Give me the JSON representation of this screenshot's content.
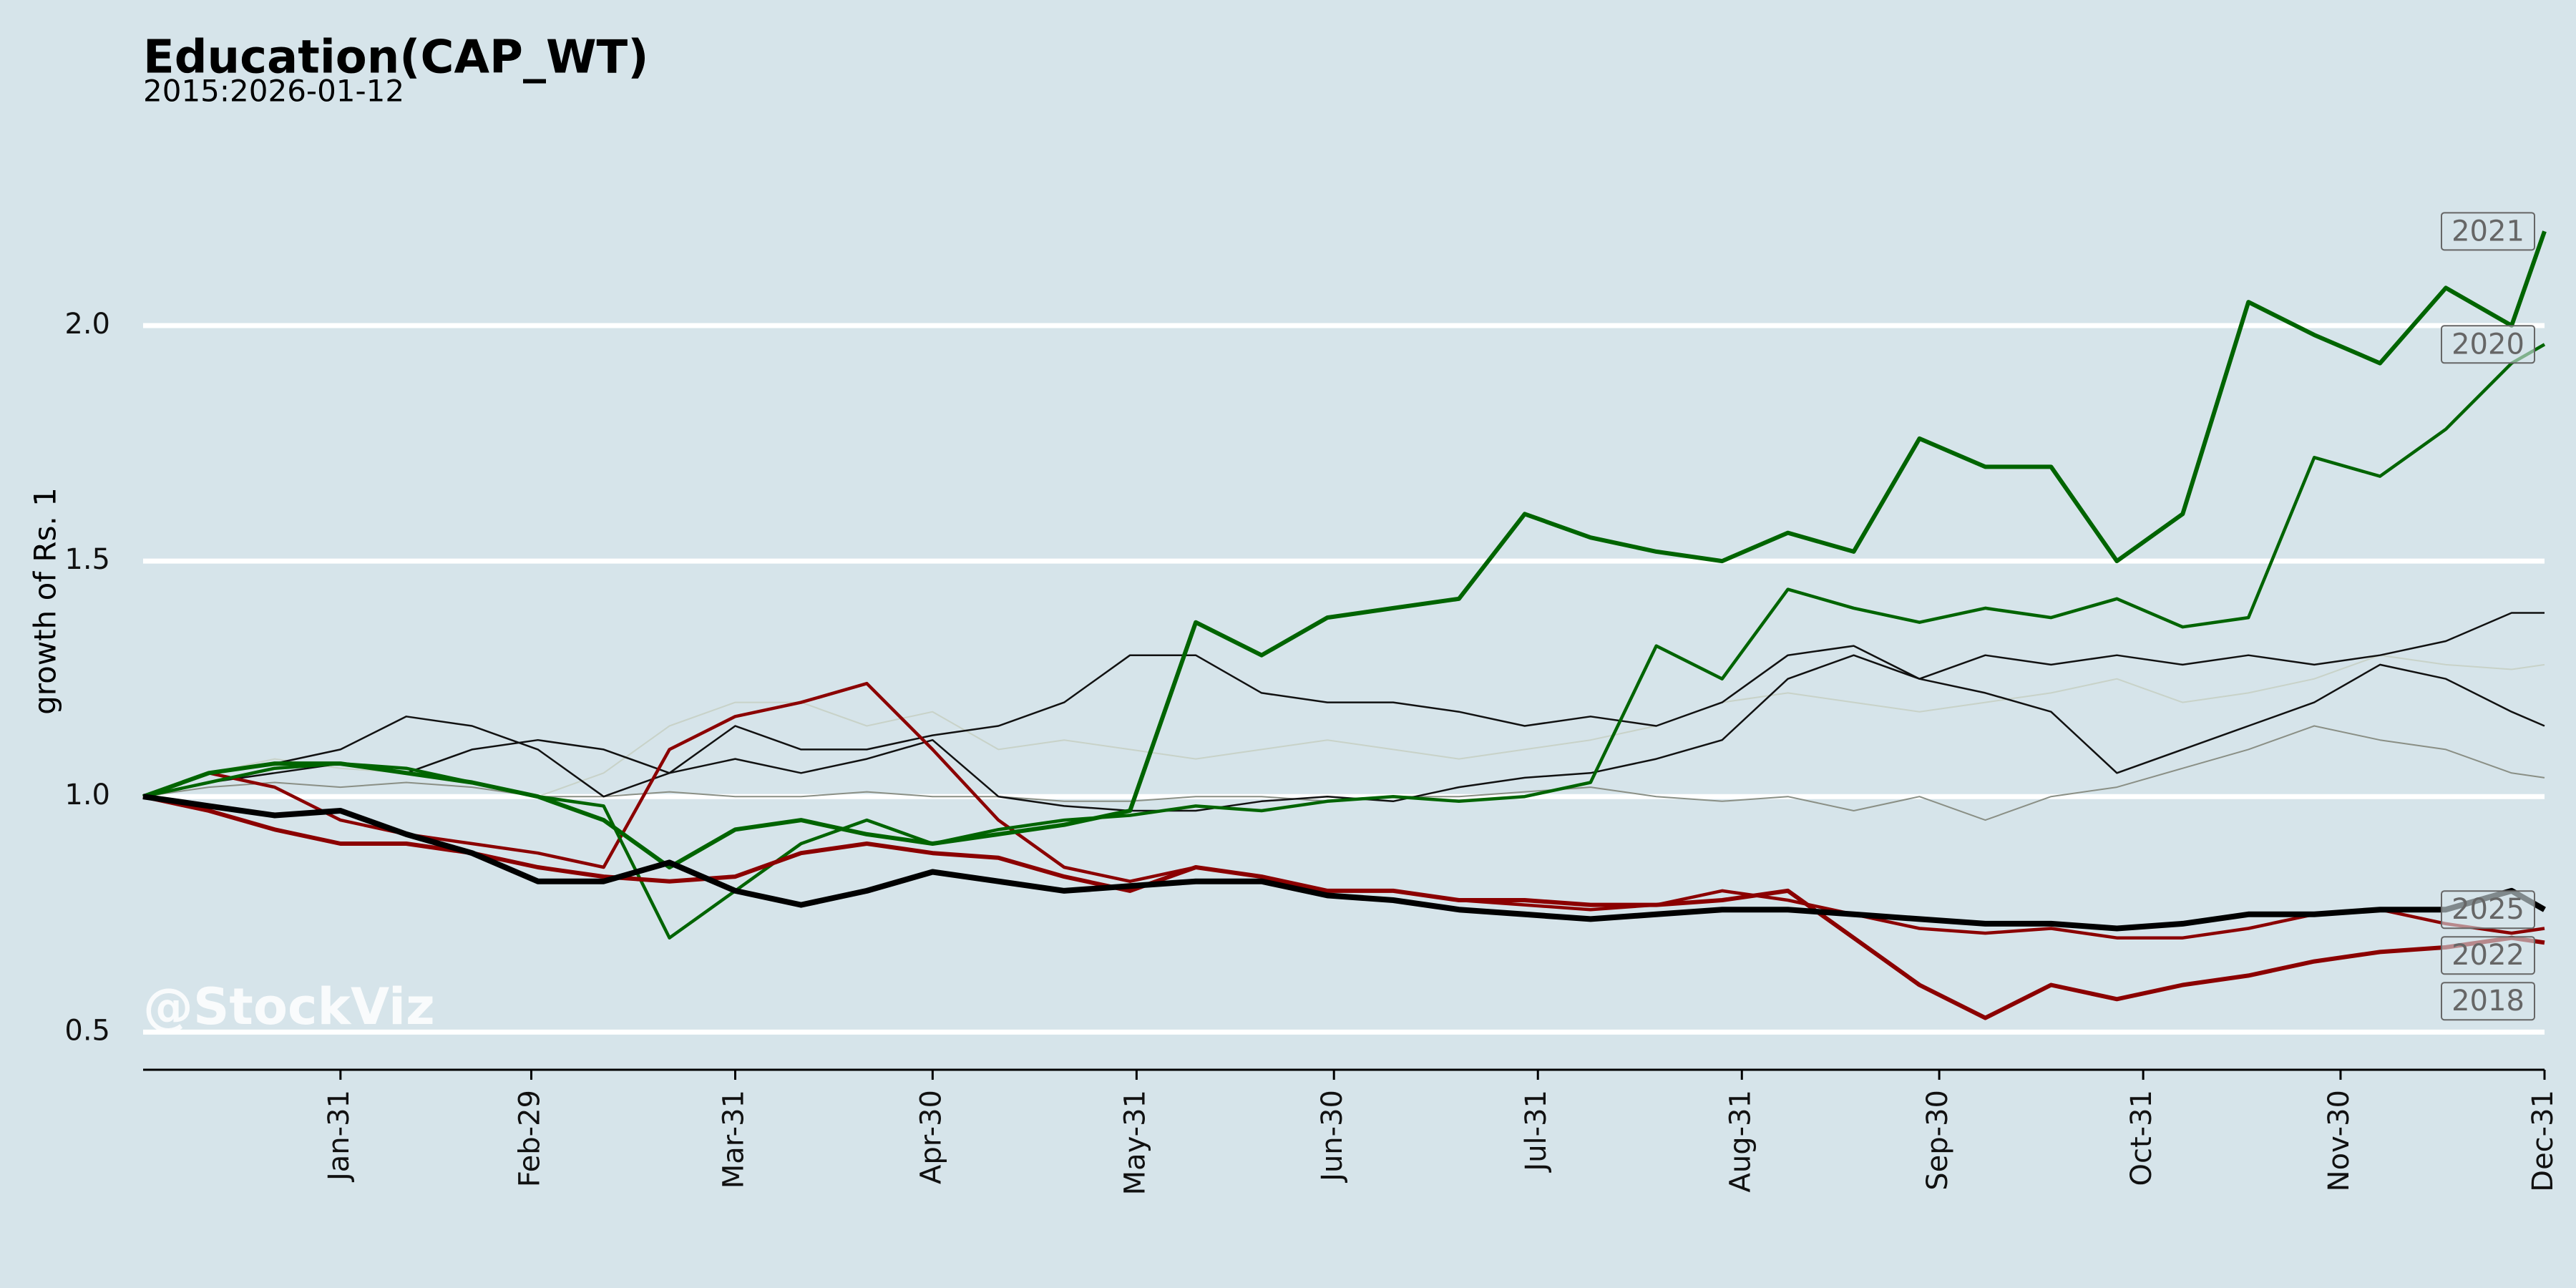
{
  "chart_data": {
    "type": "line",
    "title": "Education(CAP_WT)",
    "subtitle": "2015:2026-01-12",
    "ylabel": "growth of Rs. 1",
    "watermark": "@StockViz",
    "grid": true,
    "xlim": [
      1,
      366
    ],
    "xticks": [
      {
        "value": 31,
        "label": "Jan-31"
      },
      {
        "value": 60,
        "label": "Feb-29"
      },
      {
        "value": 91,
        "label": "Mar-31"
      },
      {
        "value": 121,
        "label": "Apr-30"
      },
      {
        "value": 152,
        "label": "May-31"
      },
      {
        "value": 182,
        "label": "Jun-30"
      },
      {
        "value": 213,
        "label": "Jul-31"
      },
      {
        "value": 244,
        "label": "Aug-31"
      },
      {
        "value": 274,
        "label": "Sep-30"
      },
      {
        "value": 305,
        "label": "Oct-31"
      },
      {
        "value": 335,
        "label": "Nov-30"
      },
      {
        "value": 366,
        "label": "Dec-31"
      }
    ],
    "ylim": [
      0.42,
      2.36
    ],
    "yticks": [
      0.5,
      {
        "value": 1,
        "label": "1.0"
      },
      1.5,
      {
        "value": 2,
        "label": "2.0"
      }
    ],
    "x": [
      1,
      11,
      21,
      31,
      41,
      51,
      61,
      71,
      81,
      91,
      101,
      111,
      121,
      131,
      141,
      151,
      161,
      171,
      181,
      191,
      201,
      211,
      221,
      231,
      241,
      251,
      261,
      271,
      281,
      291,
      301,
      311,
      321,
      331,
      341,
      351,
      361,
      366
    ],
    "series": [
      {
        "color": "#c8d2c8",
        "linewidth": 2,
        "values": [
          1.0,
          1.05,
          1.08,
          1.06,
          1.05,
          1.03,
          1.0,
          1.05,
          1.15,
          1.2,
          1.2,
          1.15,
          1.18,
          1.1,
          1.12,
          1.1,
          1.08,
          1.1,
          1.12,
          1.1,
          1.08,
          1.1,
          1.12,
          1.15,
          1.2,
          1.22,
          1.2,
          1.18,
          1.2,
          1.22,
          1.25,
          1.2,
          1.22,
          1.25,
          1.3,
          1.28,
          1.27,
          1.28
        ]
      },
      {
        "color": "#8a8f85",
        "linewidth": 2,
        "values": [
          1.0,
          1.02,
          1.03,
          1.02,
          1.03,
          1.02,
          1.0,
          1.0,
          1.01,
          1.0,
          1.0,
          1.01,
          1.0,
          1.0,
          0.99,
          0.99,
          1.0,
          1.0,
          0.99,
          1.0,
          1.0,
          1.01,
          1.02,
          1.0,
          0.99,
          1.0,
          0.97,
          1.0,
          0.95,
          1.0,
          1.02,
          1.06,
          1.1,
          1.15,
          1.12,
          1.1,
          1.05,
          1.04
        ]
      },
      {
        "color": "#111111",
        "linewidth": 2.5,
        "values": [
          1.0,
          1.05,
          1.07,
          1.1,
          1.17,
          1.15,
          1.1,
          1.0,
          1.05,
          1.15,
          1.1,
          1.1,
          1.13,
          1.15,
          1.2,
          1.3,
          1.3,
          1.22,
          1.2,
          1.2,
          1.18,
          1.15,
          1.17,
          1.15,
          1.2,
          1.3,
          1.32,
          1.25,
          1.3,
          1.28,
          1.3,
          1.28,
          1.3,
          1.28,
          1.3,
          1.33,
          1.39,
          1.39
        ]
      },
      {
        "color": "#111111",
        "linewidth": 2.5,
        "values": [
          1.0,
          1.03,
          1.05,
          1.07,
          1.05,
          1.1,
          1.12,
          1.1,
          1.05,
          1.08,
          1.05,
          1.08,
          1.12,
          1.0,
          0.98,
          0.97,
          0.97,
          0.99,
          1.0,
          0.99,
          1.02,
          1.04,
          1.05,
          1.08,
          1.12,
          1.25,
          1.3,
          1.25,
          1.22,
          1.18,
          1.05,
          1.1,
          1.15,
          1.2,
          1.28,
          1.25,
          1.18,
          1.15
        ]
      },
      {
        "name": "2022",
        "color": "#8b0000",
        "linewidth": 4.5,
        "values": [
          1.0,
          1.05,
          1.02,
          0.95,
          0.92,
          0.9,
          0.88,
          0.85,
          1.1,
          1.17,
          1.2,
          1.24,
          1.1,
          0.95,
          0.85,
          0.82,
          0.85,
          0.83,
          0.8,
          0.8,
          0.78,
          0.77,
          0.76,
          0.77,
          0.8,
          0.78,
          0.75,
          0.72,
          0.71,
          0.72,
          0.7,
          0.7,
          0.72,
          0.75,
          0.76,
          0.73,
          0.71,
          0.72
        ]
      },
      {
        "name": "2020",
        "color": "#006400",
        "linewidth": 4.5,
        "values": [
          1.0,
          1.03,
          1.06,
          1.07,
          1.06,
          1.03,
          1.0,
          0.98,
          0.7,
          0.8,
          0.9,
          0.95,
          0.9,
          0.93,
          0.95,
          0.96,
          0.98,
          0.97,
          0.99,
          1.0,
          0.99,
          1.0,
          1.03,
          1.32,
          1.25,
          1.44,
          1.4,
          1.37,
          1.4,
          1.38,
          1.42,
          1.36,
          1.38,
          1.72,
          1.68,
          1.78,
          1.92,
          1.96
        ]
      },
      {
        "name": "2018",
        "color": "#8b0000",
        "linewidth": 6,
        "values": [
          1.0,
          0.97,
          0.93,
          0.9,
          0.9,
          0.88,
          0.85,
          0.83,
          0.82,
          0.83,
          0.88,
          0.9,
          0.88,
          0.87,
          0.83,
          0.8,
          0.85,
          0.83,
          0.8,
          0.8,
          0.78,
          0.78,
          0.77,
          0.77,
          0.78,
          0.8,
          0.7,
          0.6,
          0.53,
          0.6,
          0.57,
          0.6,
          0.62,
          0.65,
          0.67,
          0.68,
          0.7,
          0.69
        ]
      },
      {
        "name": "2021",
        "color": "#006400",
        "linewidth": 6,
        "values": [
          1.0,
          1.05,
          1.07,
          1.07,
          1.05,
          1.03,
          1.0,
          0.95,
          0.85,
          0.93,
          0.95,
          0.92,
          0.9,
          0.92,
          0.94,
          0.97,
          1.37,
          1.3,
          1.38,
          1.4,
          1.42,
          1.6,
          1.55,
          1.52,
          1.5,
          1.56,
          1.52,
          1.76,
          1.7,
          1.7,
          1.5,
          1.6,
          2.05,
          1.98,
          1.92,
          2.08,
          2.0,
          2.2
        ]
      },
      {
        "name": "2025",
        "color": "#000000",
        "linewidth": 8,
        "values": [
          1.0,
          0.98,
          0.96,
          0.97,
          0.92,
          0.88,
          0.82,
          0.82,
          0.86,
          0.8,
          0.77,
          0.8,
          0.84,
          0.82,
          0.8,
          0.81,
          0.82,
          0.82,
          0.79,
          0.78,
          0.76,
          0.75,
          0.74,
          0.75,
          0.76,
          0.76,
          0.75,
          0.74,
          0.73,
          0.73,
          0.72,
          0.73,
          0.75,
          0.75,
          0.76,
          0.76,
          0.8,
          0.76
        ]
      }
    ]
  }
}
